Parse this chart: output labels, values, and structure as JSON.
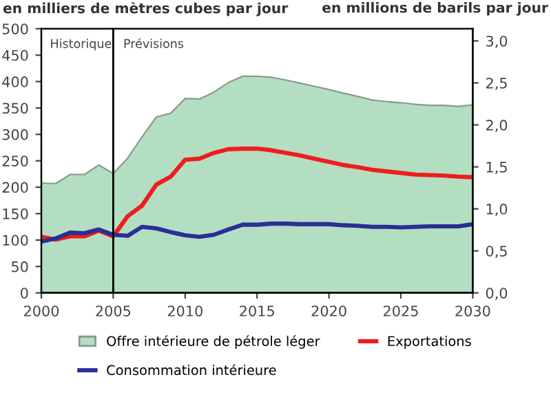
{
  "chart_data": {
    "type": "line",
    "ylabel": "en milliers de mètres cubes par jour",
    "y2label": "en millions de barils par jour",
    "x": [
      2000,
      2001,
      2002,
      2003,
      2004,
      2005,
      2006,
      2007,
      2008,
      2009,
      2010,
      2011,
      2012,
      2013,
      2014,
      2015,
      2016,
      2017,
      2018,
      2019,
      2020,
      2021,
      2022,
      2023,
      2024,
      2025,
      2026,
      2027,
      2028,
      2029,
      2030
    ],
    "series": [
      {
        "name": "Offre intérieure de pétrole léger",
        "type": "area",
        "color": "#b3dec1",
        "values": [
          208,
          207,
          224,
          224,
          242,
          226,
          255,
          295,
          333,
          340,
          368,
          367,
          380,
          398,
          410,
          410,
          408,
          403,
          397,
          391,
          385,
          378,
          372,
          365,
          362,
          360,
          357,
          355,
          355,
          353,
          356
        ]
      },
      {
        "name": "Exportations",
        "color": "#f01d1d",
        "values": [
          106,
          101,
          107,
          107,
          118,
          107,
          145,
          165,
          205,
          220,
          252,
          254,
          265,
          272,
          273,
          273,
          270,
          265,
          260,
          254,
          248,
          242,
          238,
          233,
          230,
          227,
          224,
          223,
          222,
          220,
          219
        ]
      },
      {
        "name": "Consommation intérieure",
        "color": "#2b2e96",
        "values": [
          97,
          103,
          114,
          113,
          120,
          110,
          108,
          125,
          122,
          115,
          109,
          106,
          110,
          120,
          129,
          129,
          131,
          131,
          130,
          130,
          130,
          128,
          127,
          125,
          125,
          124,
          125,
          126,
          126,
          126,
          130
        ]
      }
    ],
    "xlim": [
      2000,
      2030
    ],
    "xticks": [
      2000,
      2005,
      2010,
      2015,
      2020,
      2025,
      2030
    ],
    "ylim": [
      0,
      500
    ],
    "yticks": [
      0,
      50,
      100,
      150,
      200,
      250,
      300,
      350,
      400,
      450,
      500
    ],
    "y2lim": [
      0,
      3.145
    ],
    "y2ticks": [
      {
        "value": 0,
        "label": "0,0"
      },
      {
        "value": 0.5,
        "label": "0,5"
      },
      {
        "value": 1,
        "label": "1,0"
      },
      {
        "value": 1.5,
        "label": "1,5"
      },
      {
        "value": 2,
        "label": "2,0"
      },
      {
        "value": 2.5,
        "label": "2,5"
      },
      {
        "value": 3,
        "label": "3,0"
      }
    ],
    "ref_lines": [
      {
        "axis": "x",
        "value": 2005,
        "color": "#000000"
      }
    ],
    "annotations": [
      "Historique",
      "Prévisions"
    ],
    "legend": "bottom",
    "grid": false
  }
}
